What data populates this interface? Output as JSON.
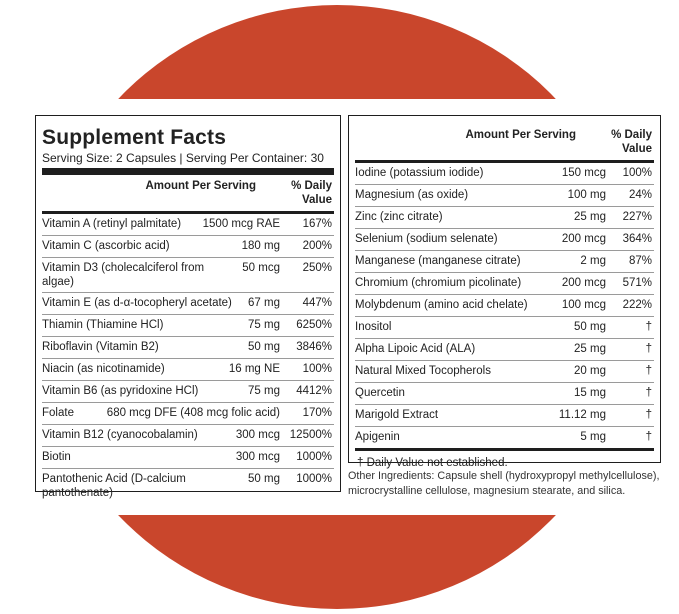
{
  "title": "Supplement Facts",
  "serving": "Serving Size: 2 Capsules | Serving Per Container: 30",
  "header": {
    "amount": "Amount Per Serving",
    "dv": "% Daily Value"
  },
  "left_rows": [
    {
      "name": "Vitamin A (retinyl palmitate)",
      "amount": "1500 mcg RAE",
      "dv": "167%"
    },
    {
      "name": "Vitamin C (ascorbic acid)",
      "amount": "180 mg",
      "dv": "200%"
    },
    {
      "name": "Vitamin D3 (cholecalciferol from algae)",
      "amount": "50 mcg",
      "dv": "250%"
    },
    {
      "name": "Vitamin E (as d-α-tocopheryl acetate)",
      "amount": "67 mg",
      "dv": "447%"
    },
    {
      "name": "Thiamin (Thiamine HCl)",
      "amount": "75 mg",
      "dv": "6250%"
    },
    {
      "name": "Riboflavin (Vitamin B2)",
      "amount": "50 mg",
      "dv": "3846%"
    },
    {
      "name": "Niacin (as nicotinamide)",
      "amount": "16 mg NE",
      "dv": "100%"
    },
    {
      "name": "Vitamin B6 (as pyridoxine HCl)",
      "amount": "75 mg",
      "dv": "4412%"
    },
    {
      "name": "Folate",
      "amount": "680 mcg DFE (408 mcg folic acid)",
      "dv": "170%"
    },
    {
      "name": "Vitamin B12 (cyanocobalamin)",
      "amount": "300 mcg",
      "dv": "12500%"
    },
    {
      "name": "Biotin",
      "amount": "300 mcg",
      "dv": "1000%"
    },
    {
      "name": "Pantothenic Acid (D-calcium pantothenate)",
      "amount": "50 mg",
      "dv": "1000%"
    }
  ],
  "right_rows": [
    {
      "name": "Iodine (potassium iodide)",
      "amount": "150 mcg",
      "dv": "100%"
    },
    {
      "name": "Magnesium (as oxide)",
      "amount": "100 mg",
      "dv": "24%"
    },
    {
      "name": "Zinc (zinc citrate)",
      "amount": "25 mg",
      "dv": "227%"
    },
    {
      "name": "Selenium (sodium selenate)",
      "amount": "200 mcg",
      "dv": "364%"
    },
    {
      "name": "Manganese (manganese citrate)",
      "amount": "2 mg",
      "dv": "87%"
    },
    {
      "name": "Chromium (chromium picolinate)",
      "amount": "200 mcg",
      "dv": "571%"
    },
    {
      "name": "Molybdenum (amino acid chelate)",
      "amount": "100 mcg",
      "dv": "222%"
    },
    {
      "name": "Inositol",
      "amount": "50 mg",
      "dv": "†"
    },
    {
      "name": "Alpha Lipoic Acid (ALA)",
      "amount": "25 mg",
      "dv": "†"
    },
    {
      "name": "Natural Mixed Tocopherols",
      "amount": "20 mg",
      "dv": "†"
    },
    {
      "name": "Quercetin",
      "amount": "15 mg",
      "dv": "†"
    },
    {
      "name": "Marigold Extract",
      "amount": "11.12 mg",
      "dv": "†"
    },
    {
      "name": "Apigenin",
      "amount": "5 mg",
      "dv": "†"
    }
  ],
  "footnote": "† Daily Value not established.",
  "other_ingredients": "Other Ingredients: Capsule shell (hydroxypropyl methylcellulose), microcrystalline cellulose, magnesium stearate, and silica.",
  "colors": {
    "background_circle": "#c9462c",
    "rule": "#1e1e1e"
  }
}
